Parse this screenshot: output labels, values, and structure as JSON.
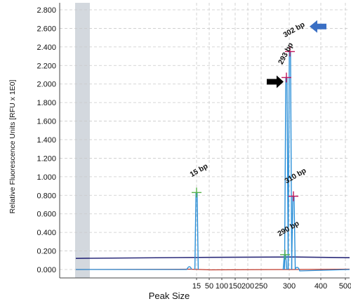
{
  "chart_data": {
    "type": "line",
    "xlabel": "Peak Size",
    "ylabel": "Relative Fluorescence Units [RFU x 1E0]",
    "ylim": [
      -0.1,
      2.9
    ],
    "y_ticks": [
      "2.800",
      "2.600",
      "2.400",
      "2.200",
      "2.000",
      "1.800",
      "1.600",
      "1.400",
      "1.200",
      "1.000",
      "0.800",
      "0.600",
      "0.400",
      "0.200",
      "0.000"
    ],
    "y_tick_values": [
      2.8,
      2.6,
      2.4,
      2.2,
      2.0,
      1.8,
      1.6,
      1.4,
      1.2,
      1.0,
      0.8,
      0.6,
      0.4,
      0.2,
      0.0
    ],
    "x_ticks": [
      "15",
      "50",
      "100",
      "150",
      "200",
      "250",
      "300",
      "400",
      "500"
    ],
    "x_tick_values": [
      15,
      50,
      100,
      150,
      200,
      250,
      300,
      400,
      500
    ],
    "grid": true,
    "colors": {
      "signal": "#2a8fd8",
      "upper_baseline": "#2b2b7a",
      "lower_baseline": "#c0392b",
      "marker_green": "#59b34a",
      "marker_red": "#c2185b",
      "arrow_black": "#000000",
      "arrow_blue": "#3a6fc4",
      "excluded_region": "#d3d8de"
    },
    "peaks": [
      {
        "label": "15 bp",
        "size": 15,
        "value": 0.83
      },
      {
        "label": "290 bp",
        "size": 290,
        "value": 0.16
      },
      {
        "label": "293 bp",
        "size": 293,
        "value": 2.07
      },
      {
        "label": "302 bp",
        "size": 302,
        "value": 2.35
      },
      {
        "label": "310 bp",
        "size": 310,
        "value": 0.79
      }
    ],
    "arrows": [
      {
        "points_to": "293 bp",
        "color": "black"
      },
      {
        "points_to": "302 bp",
        "color": "blue"
      }
    ]
  }
}
